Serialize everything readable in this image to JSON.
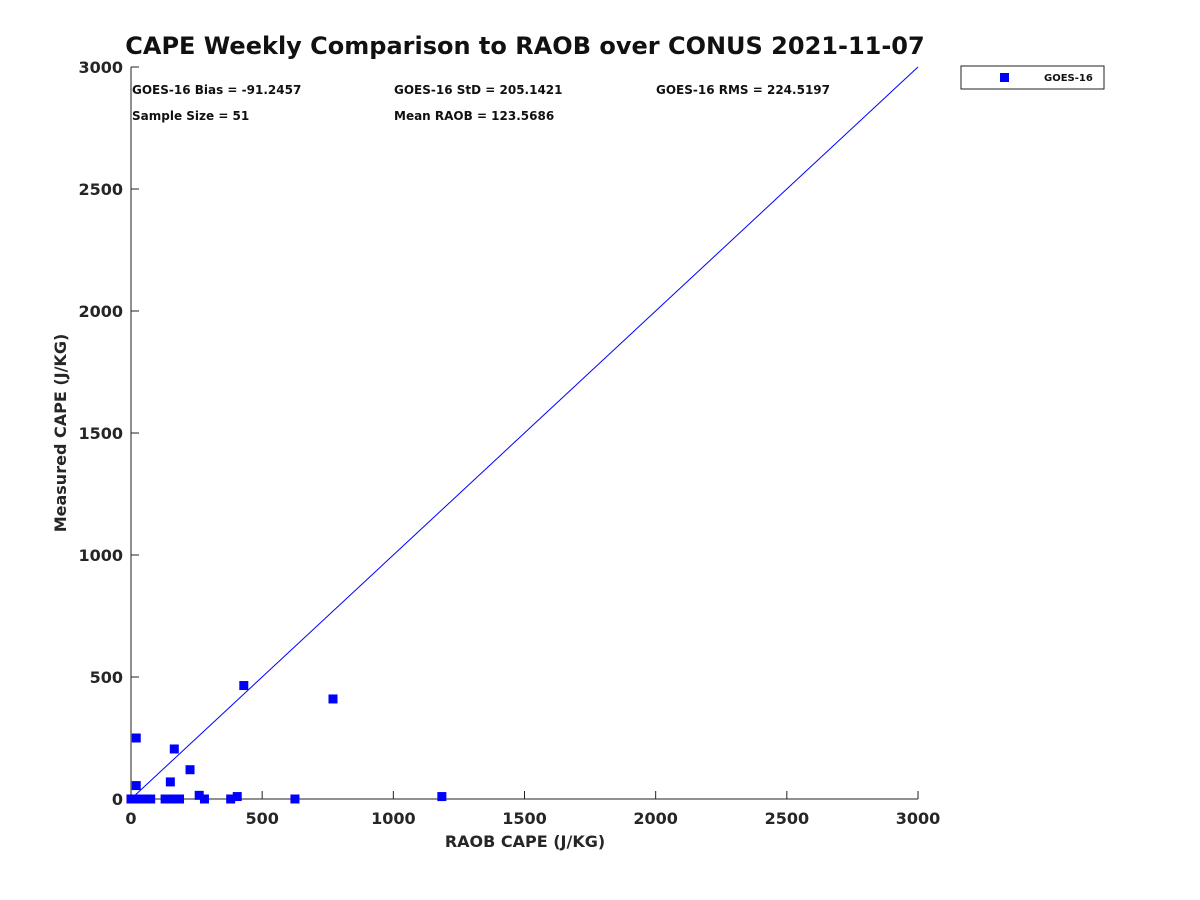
{
  "chart_data": {
    "type": "scatter",
    "title": "CAPE Weekly Comparison to RAOB over CONUS 2021-11-07",
    "xlabel": "RAOB CAPE (J/KG)",
    "ylabel": "Measured CAPE (J/KG)",
    "xlim": [
      0,
      3000
    ],
    "ylim": [
      0,
      3000
    ],
    "xticks": [
      "0",
      "500",
      "1000",
      "1500",
      "2000",
      "2500",
      "3000"
    ],
    "yticks": [
      "0",
      "500",
      "1000",
      "1500",
      "2000",
      "2500",
      "3000"
    ],
    "legend": {
      "position": "outside-top-right",
      "entries": [
        "GOES-16"
      ]
    },
    "series": [
      {
        "name": "GOES-16",
        "color": "#0000ff",
        "points": [
          [
            0,
            0
          ],
          [
            10,
            0
          ],
          [
            20,
            0
          ],
          [
            30,
            0
          ],
          [
            45,
            0
          ],
          [
            60,
            0
          ],
          [
            75,
            0
          ],
          [
            20,
            250
          ],
          [
            20,
            55
          ],
          [
            130,
            0
          ],
          [
            160,
            0
          ],
          [
            185,
            0
          ],
          [
            280,
            0
          ],
          [
            380,
            0
          ],
          [
            625,
            0
          ],
          [
            150,
            70
          ],
          [
            165,
            205
          ],
          [
            225,
            120
          ],
          [
            260,
            15
          ],
          [
            405,
            10
          ],
          [
            430,
            465
          ],
          [
            770,
            410
          ],
          [
            1185,
            10
          ]
        ]
      }
    ],
    "reference_line": {
      "from": [
        0,
        0
      ],
      "to": [
        3000,
        3000
      ],
      "color": "#0000ff"
    },
    "annotations": [
      "GOES-16 Bias = -91.2457",
      "GOES-16 StD = 205.1421",
      "GOES-16 RMS = 224.5197",
      "Sample Size = 51",
      "Mean RAOB = 123.5686"
    ]
  }
}
